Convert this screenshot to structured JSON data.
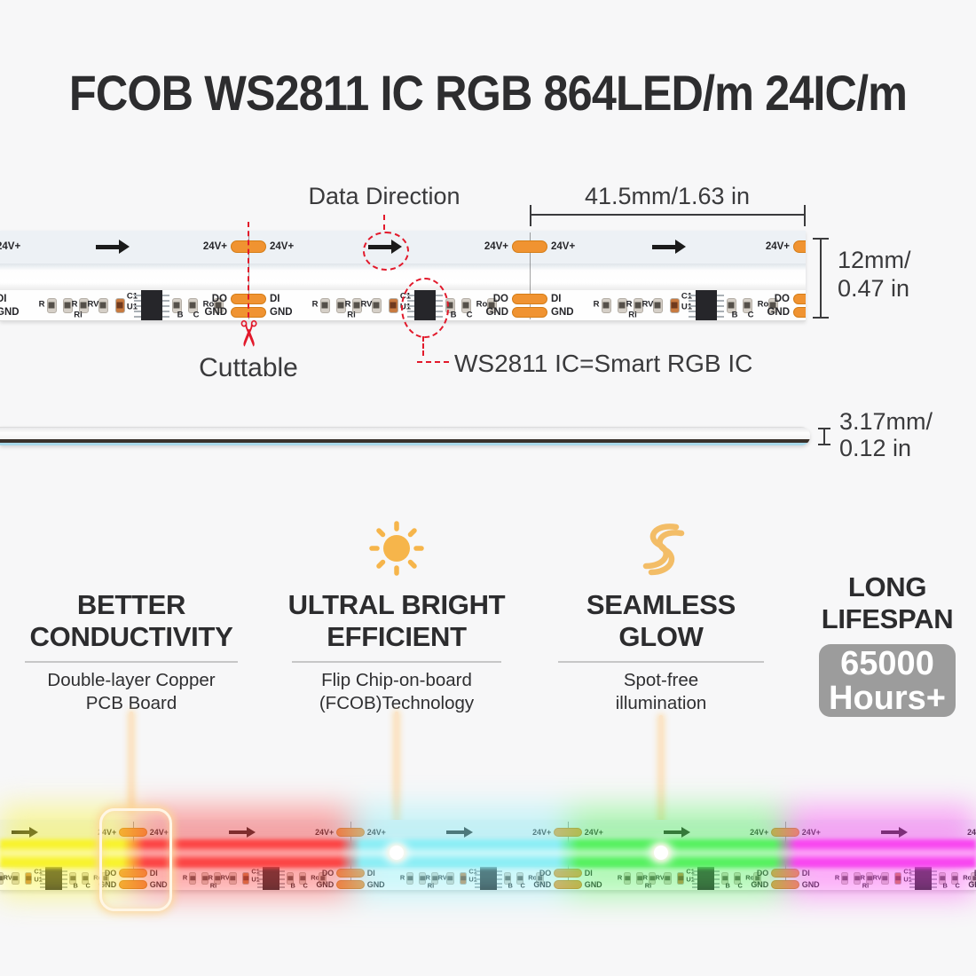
{
  "title": "FCOB WS2811 IC RGB 864LED/m 24IC/m",
  "annotations": {
    "data_direction": "Data Direction",
    "cuttable": "Cuttable",
    "ic_callout": "WS2811 IC=Smart RGB IC",
    "dim_length": "41.5mm/1.63 in",
    "dim_width_1": "12mm/",
    "dim_width_2": "0.47 in",
    "dim_thickness_1": "3.17mm/",
    "dim_thickness_2": "0.12 in"
  },
  "icons": {
    "scissors": "✂",
    "sun": "sun-icon",
    "seamless": "seamless-wave-icon"
  },
  "strip": {
    "power_label": "24V+",
    "pad_labels": {
      "do": "DO",
      "di": "DI",
      "gnd": "GND"
    },
    "component_labels": {
      "r": "R",
      "ri": "Ri",
      "rv": "RV",
      "c1": "C1",
      "u1": "U1",
      "b": "B",
      "c": "C",
      "ro": "Ro"
    }
  },
  "features": [
    {
      "line1": "BETTER",
      "line2": "CONDUCTIVITY",
      "desc1": "Double-layer Copper",
      "desc2": "PCB Board"
    },
    {
      "line1": "ULTRAL BRIGHT",
      "line2": "EFFICIENT",
      "desc1": "Flip Chip-on-board",
      "desc2": "(FCOB)Technology"
    },
    {
      "line1": "SEAMLESS",
      "line2": "GLOW",
      "desc1": "Spot-free",
      "desc2": "illumination"
    },
    {
      "line1": "LONG",
      "line2": "LIFESPAN",
      "badge1": "65000",
      "badge2": "Hours+"
    }
  ],
  "colors": {
    "pad_orange": "#f09331",
    "pad_border": "#d47d17",
    "annotation_red": "#e2192b",
    "icon_amber": "#f6b54b",
    "badge_gray": "#9c9c9c",
    "text_dark": "#2d2d2f",
    "glow_yellow": "#f8f32e",
    "glow_red": "#fc4545",
    "glow_cyan": "#8deef5",
    "glow_green": "#57f161",
    "glow_magenta": "#f847f0"
  }
}
